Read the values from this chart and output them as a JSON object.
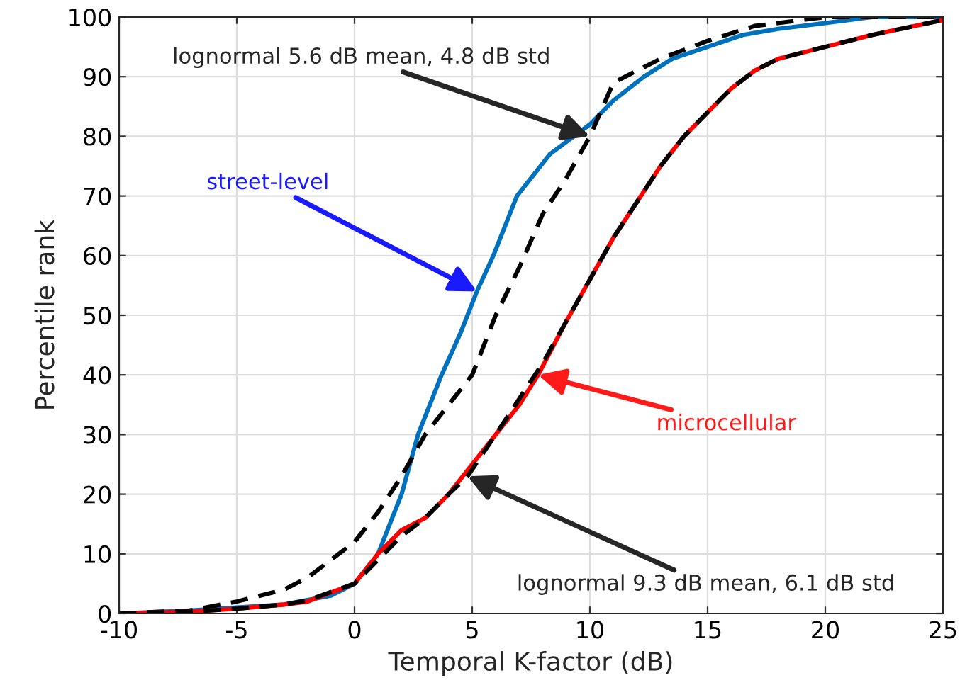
{
  "chart_data": {
    "type": "line",
    "xlabel": "Temporal K-factor (dB)",
    "ylabel": "Percentile rank",
    "xlim": [
      -10,
      25
    ],
    "ylim": [
      0,
      100
    ],
    "xticks": [
      -10,
      -5,
      0,
      5,
      10,
      15,
      20,
      25
    ],
    "yticks": [
      0,
      10,
      20,
      30,
      40,
      50,
      60,
      70,
      80,
      90,
      100
    ],
    "grid": true,
    "legend": false,
    "marker": "none",
    "series": [
      {
        "color": "#0072bd",
        "line_style": "solid",
        "x": [
          -10,
          -7,
          -5,
          -3,
          -1,
          0,
          1,
          2,
          2.7,
          3.7,
          4.5,
          5.2,
          5.9,
          6.9,
          8.3,
          10,
          11,
          12.3,
          13.5,
          15,
          16.5,
          18,
          20,
          22,
          25
        ],
        "values": [
          0,
          0.5,
          1,
          1.5,
          3,
          5,
          10,
          20,
          30,
          40,
          47,
          54,
          60,
          70,
          77,
          82,
          86,
          90,
          93,
          95,
          97,
          98,
          99,
          100,
          100
        ]
      },
      {
        "color": "#000000",
        "line_style": "dashed",
        "x": [
          -10,
          -7,
          -5,
          -3,
          -2,
          0,
          1,
          2,
          3,
          4,
          5,
          6,
          7,
          8,
          9,
          10,
          11,
          12,
          13,
          15,
          17,
          20,
          22,
          25
        ],
        "values": [
          0,
          0.5,
          2,
          4,
          6,
          12,
          17,
          23,
          30,
          35,
          40,
          50,
          58,
          67,
          73,
          80,
          89,
          91,
          93,
          96,
          98.5,
          100,
          100,
          100
        ]
      },
      {
        "color": "#ff0000",
        "line_style": "solid",
        "x": [
          -10,
          -7,
          -5,
          -3,
          -2,
          0,
          1,
          2,
          3,
          4,
          4.8,
          6,
          7,
          7.8,
          9,
          10,
          11,
          12,
          13,
          14,
          15,
          16,
          17,
          18,
          20,
          22,
          25
        ],
        "values": [
          0,
          0.3,
          0.8,
          1.5,
          2,
          5,
          10,
          14,
          16,
          20,
          24,
          30,
          35,
          40,
          49,
          56,
          63,
          69,
          75,
          80,
          84,
          88,
          91,
          93,
          95,
          97,
          99.5
        ]
      },
      {
        "color": "#000000",
        "line_style": "dashed",
        "x": [
          -10,
          -7,
          -5,
          -3,
          -2,
          0,
          1,
          2,
          3,
          4,
          4.8,
          6,
          7,
          8,
          9,
          10,
          11,
          12,
          13,
          14,
          15,
          16,
          17,
          18,
          20,
          22,
          25
        ],
        "values": [
          0,
          0.3,
          0.8,
          1.5,
          2.2,
          5,
          9,
          13,
          16,
          20,
          23,
          30,
          36,
          42,
          49,
          56,
          63,
          69,
          75,
          80,
          84,
          88,
          91,
          93,
          95,
          97,
          99.5
        ]
      }
    ],
    "annotations": [
      {
        "text": "lognormal 5.6 dB mean, 4.8 dB std",
        "x": 10,
        "y": 80
      },
      {
        "text": "street-level",
        "x": 5.2,
        "y": 54
      },
      {
        "text": "microcellular",
        "x": 7.8,
        "y": 40
      },
      {
        "text": "lognormal 9.3 dB mean, 6.1 dB std",
        "x": 4.8,
        "y": 23
      }
    ]
  }
}
